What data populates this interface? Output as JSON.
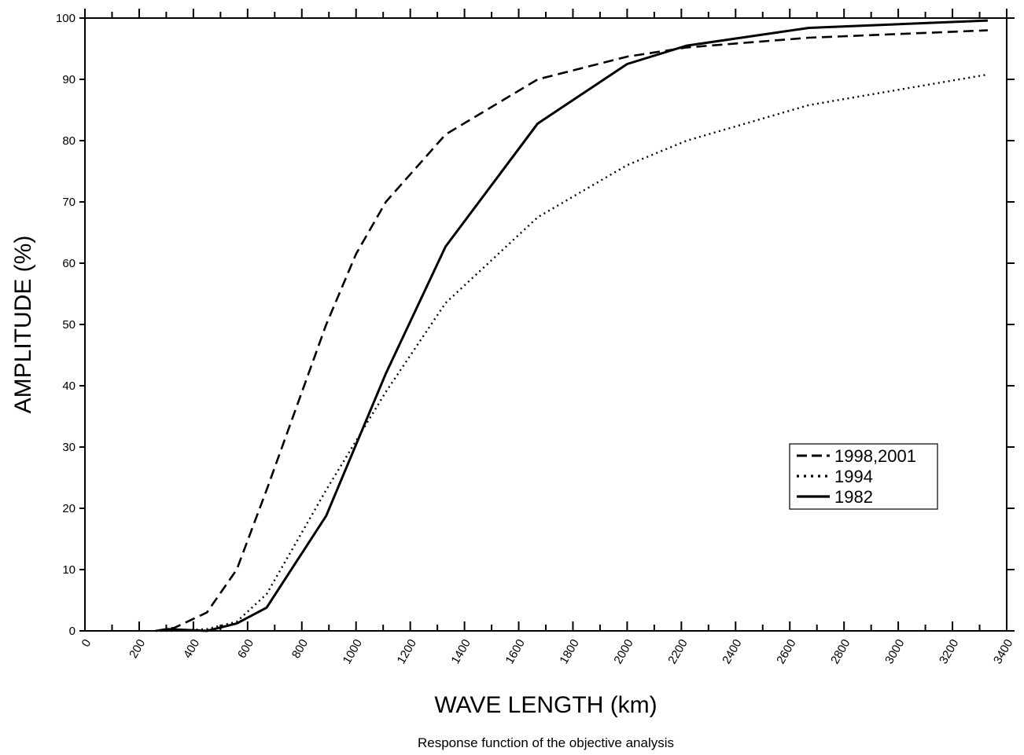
{
  "chart_data": {
    "type": "line",
    "title": "",
    "caption": "Response function of the objective analysis",
    "xlabel": "WAVE LENGTH (km)",
    "ylabel": "AMPLITUDE (%)",
    "xlim": [
      0,
      3400
    ],
    "ylim": [
      0,
      100
    ],
    "x_ticks": [
      "0",
      "200",
      "400",
      "600",
      "800",
      "1000",
      "1200",
      "1400",
      "1600",
      "1800",
      "2000",
      "2200",
      "2400",
      "2600",
      "2800",
      "3000",
      "3200",
      "3400"
    ],
    "y_ticks": [
      "0",
      "10",
      "20",
      "30",
      "40",
      "50",
      "60",
      "70",
      "80",
      "90",
      "100"
    ],
    "grid": false,
    "legend_position": "lower-right",
    "series": [
      {
        "name": "1998,2001",
        "style": "dashed",
        "color": "#000000",
        "points": [
          [
            260,
            0
          ],
          [
            330,
            0.5
          ],
          [
            450,
            3
          ],
          [
            560,
            10
          ],
          [
            670,
            23
          ],
          [
            890,
            50
          ],
          [
            1000,
            61.5
          ],
          [
            1110,
            70
          ],
          [
            1330,
            81
          ],
          [
            1670,
            90
          ],
          [
            2000,
            93.7
          ],
          [
            2220,
            95.2
          ],
          [
            2670,
            96.8
          ],
          [
            3330,
            98
          ]
        ]
      },
      {
        "name": "1994",
        "style": "dotted",
        "color": "#000000",
        "points": [
          [
            260,
            0
          ],
          [
            330,
            0
          ],
          [
            450,
            0.3
          ],
          [
            560,
            1.5
          ],
          [
            670,
            6
          ],
          [
            890,
            23
          ],
          [
            1110,
            39
          ],
          [
            1330,
            53.5
          ],
          [
            1670,
            67.5
          ],
          [
            2000,
            76
          ],
          [
            2220,
            80
          ],
          [
            2670,
            85.8
          ],
          [
            3330,
            90.8
          ]
        ]
      },
      {
        "name": "1982",
        "style": "solid",
        "color": "#000000",
        "points": [
          [
            300,
            0.3
          ],
          [
            450,
            0
          ],
          [
            560,
            1.2
          ],
          [
            670,
            3.8
          ],
          [
            890,
            18.8
          ],
          [
            1110,
            42
          ],
          [
            1330,
            62.7
          ],
          [
            1670,
            82.8
          ],
          [
            2000,
            92.5
          ],
          [
            2220,
            95.5
          ],
          [
            2670,
            98.4
          ],
          [
            3330,
            99.6
          ]
        ]
      }
    ]
  }
}
